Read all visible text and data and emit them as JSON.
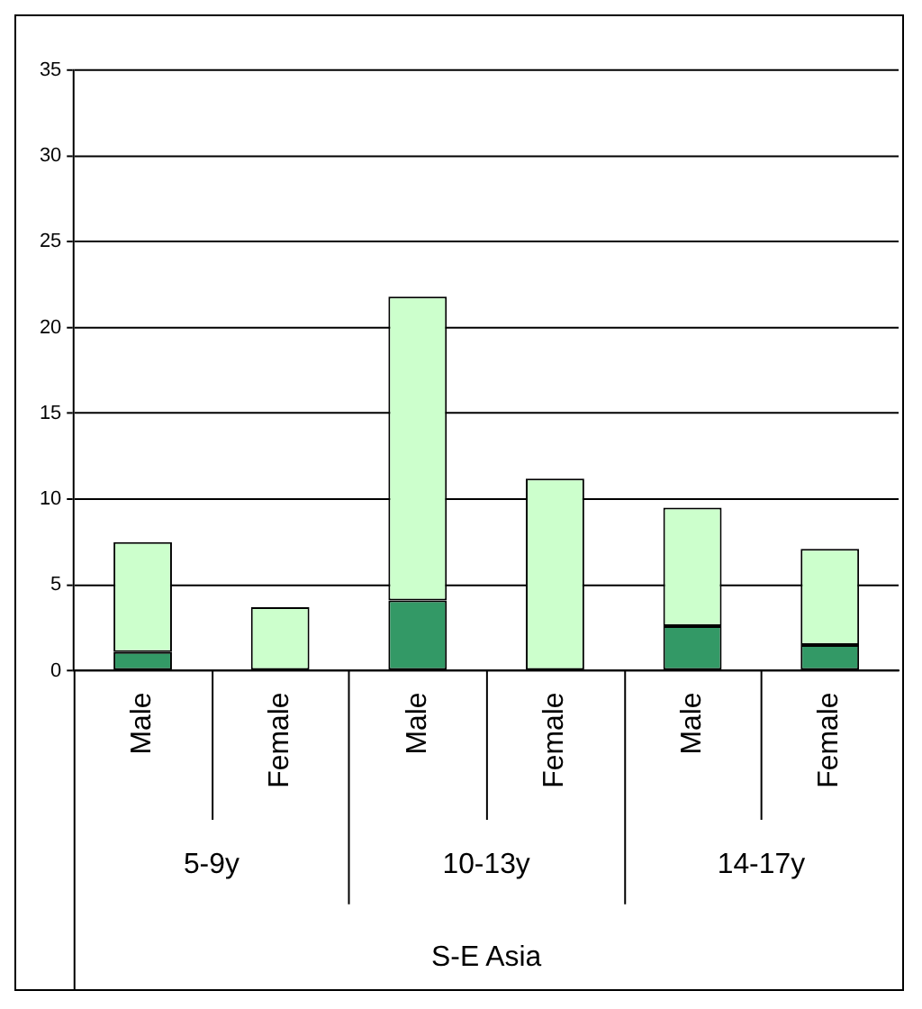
{
  "chart_data": {
    "type": "bar",
    "stacked": true,
    "categories": [
      "Male",
      "Female",
      "Male",
      "Female",
      "Male",
      "Female"
    ],
    "series": [
      {
        "color": "#339966",
        "values": [
          1.1,
          0,
          4.1,
          0,
          2.6,
          1.5
        ]
      },
      {
        "color": "#ccffcc",
        "values": [
          6.4,
          3.7,
          17.7,
          11.2,
          6.9,
          5.6
        ]
      }
    ],
    "ylim": [
      0,
      35
    ],
    "yticks": [
      0,
      5,
      10,
      15,
      20,
      25,
      30,
      35
    ],
    "grid": "y",
    "legend": false,
    "annotations": [
      "5-9y",
      "10-13y",
      "14-17y",
      "S-E Asia"
    ]
  }
}
